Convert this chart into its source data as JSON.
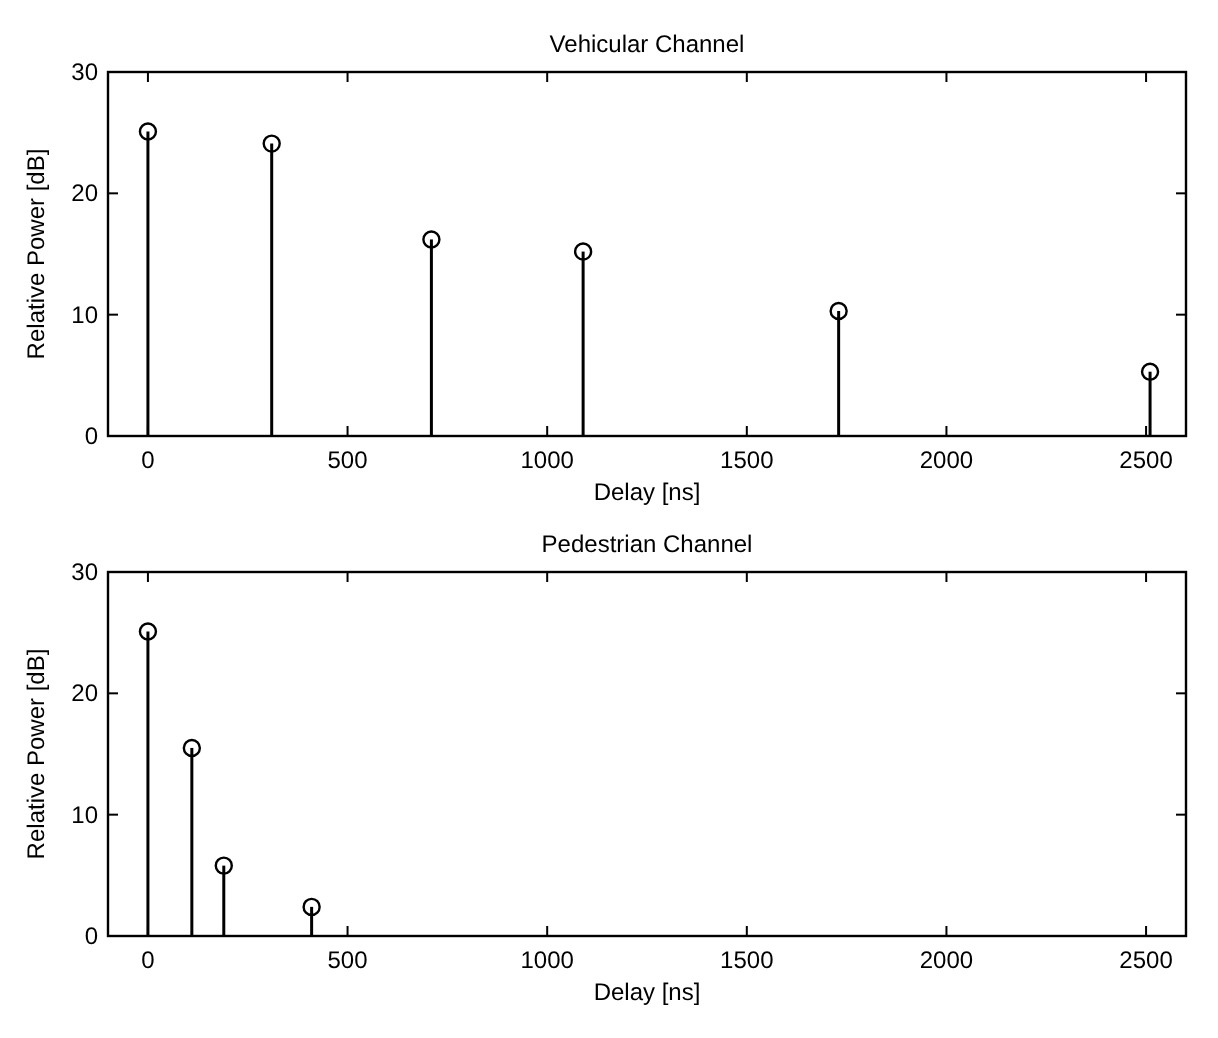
{
  "chart_data": [
    {
      "type": "lollipop",
      "title": "Vehicular Channel",
      "xlabel": "Delay [ns]",
      "ylabel": "Relative Power [dB]",
      "x": [
        0,
        310,
        710,
        1090,
        1730,
        2510
      ],
      "values": [
        25.1,
        24.1,
        16.2,
        15.2,
        10.3,
        5.3
      ],
      "color": "#000000",
      "marker": "circle",
      "xlim": [
        -100,
        2600
      ],
      "xticks": [
        0,
        500,
        1000,
        1500,
        2000,
        2500
      ],
      "ylim": [
        0,
        30
      ],
      "yticks": [
        0,
        10,
        20,
        30
      ]
    },
    {
      "type": "lollipop",
      "title": "Pedestrian Channel",
      "xlabel": "Delay [ns]",
      "ylabel": "Relative Power [dB]",
      "x": [
        0,
        110,
        190,
        410
      ],
      "values": [
        25.1,
        15.5,
        5.8,
        2.4
      ],
      "color": "#000000",
      "marker": "circle",
      "xlim": [
        -100,
        2600
      ],
      "xticks": [
        0,
        500,
        1000,
        1500,
        2000,
        2500
      ],
      "ylim": [
        0,
        30
      ],
      "yticks": [
        0,
        10,
        20,
        30
      ]
    }
  ]
}
